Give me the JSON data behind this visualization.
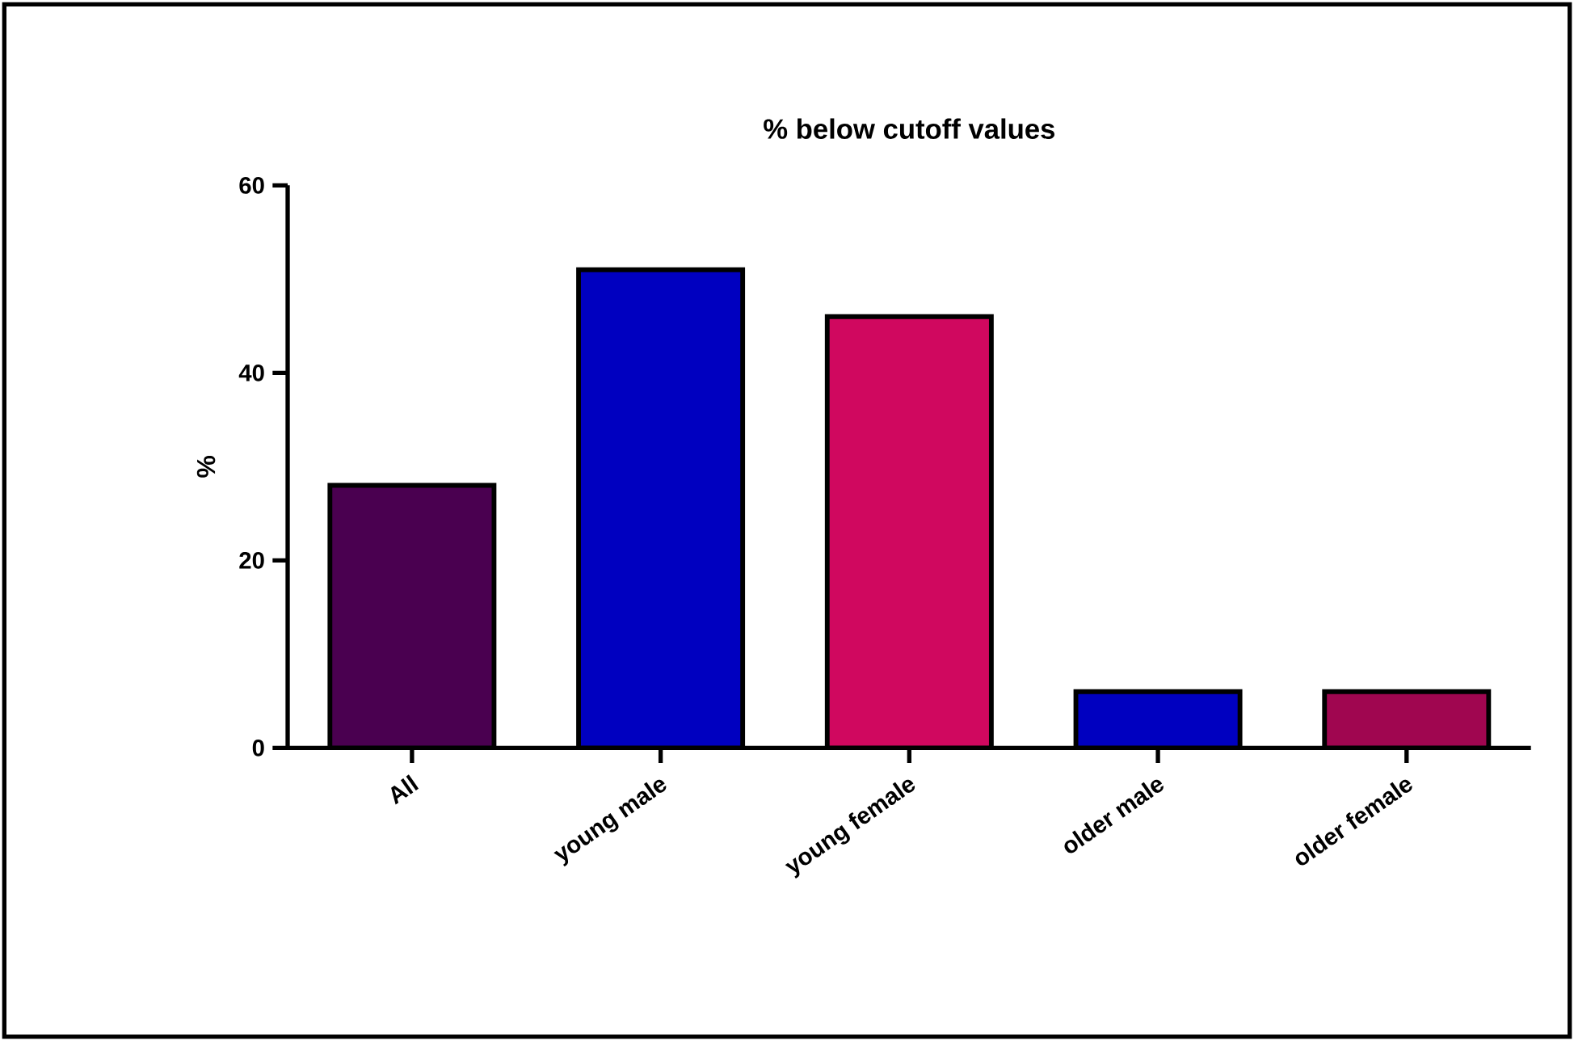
{
  "chart_data": {
    "type": "bar",
    "title": "% below cutoff values",
    "ylabel": "%",
    "categories": [
      "All",
      "young male",
      "young female",
      "older male",
      "older female"
    ],
    "values": [
      28,
      51,
      46,
      6,
      6
    ],
    "colors": [
      "#4a0050",
      "#0000c0",
      "#d0085f",
      "#0000c0",
      "#a00650"
    ],
    "ylim": [
      0,
      60
    ],
    "yticks": [
      0,
      20,
      40,
      60
    ],
    "grid": false
  }
}
